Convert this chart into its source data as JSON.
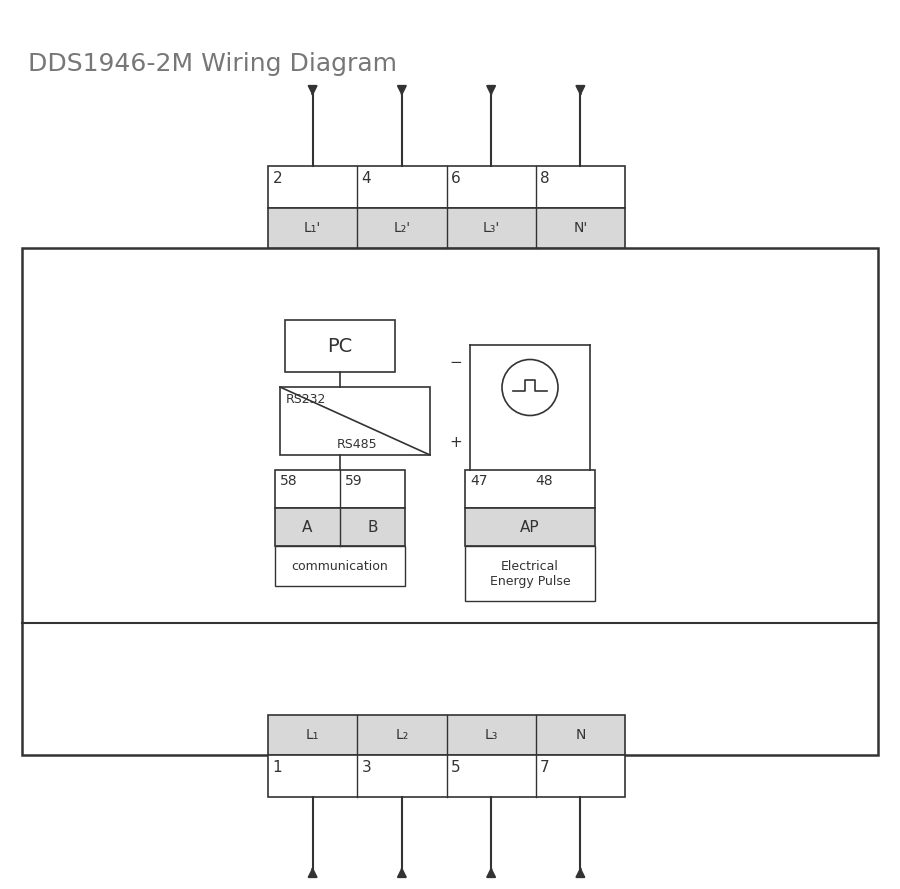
{
  "title": "DDS1946-2M Wiring Diagram",
  "title_color": "#777777",
  "title_fontsize": 18,
  "bg_color": "#ffffff",
  "line_color": "#333333",
  "gray_fill": "#d8d8d8",
  "white_fill": "#ffffff",
  "terminal_top_numbers": [
    "2",
    "4",
    "6",
    "8"
  ],
  "terminal_top_labels": [
    "L₁'",
    "L₂'",
    "L₃'",
    "N'"
  ],
  "terminal_bot_numbers": [
    "1",
    "3",
    "5",
    "7"
  ],
  "terminal_bot_labels": [
    "L₁",
    "L₂",
    "L₃",
    "N"
  ],
  "comm_numbers": [
    "58",
    "59"
  ],
  "comm_labels": [
    "A",
    "B"
  ],
  "pulse_numbers": [
    "47",
    "48"
  ],
  "pulse_label": "AP",
  "comm_box_label": "communication",
  "pulse_box_label": "Electrical\nEnergy Pulse",
  "pc_label": "PC",
  "rs_label1": "RS232",
  "rs_label2": "RS485",
  "figw": 9.0,
  "figh": 8.89,
  "dpi": 100
}
